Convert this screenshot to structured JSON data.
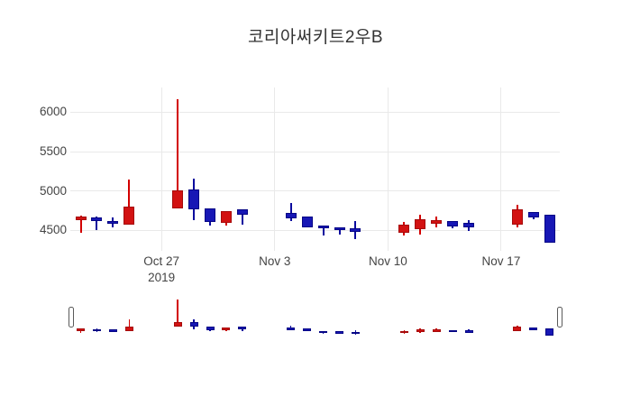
{
  "chart_data": {
    "type": "candlestick",
    "title": "코리아써키트2우B",
    "legend_position": "none",
    "grid": true,
    "colors": {
      "increasing_fill": "#d21212",
      "increasing_border": "#a50b0b",
      "increasing_wick": "#d30000",
      "decreasing_fill": "#1717b5",
      "decreasing_border": "#050585",
      "decreasing_wick": "#0b0b9e",
      "gridline": "#e9e9e9",
      "tick_text": "#444444",
      "title_text": "#333333"
    },
    "yaxis": {
      "range": [
        4236,
        6316
      ],
      "ticks": [
        4500,
        5000,
        5500,
        6000
      ]
    },
    "xaxis": {
      "ticks": [
        {
          "label": "Oct 27",
          "sublabel": "2019",
          "date": "2019-10-27"
        },
        {
          "label": "Nov 3",
          "sublabel": "",
          "date": "2019-11-03"
        },
        {
          "label": "Nov 10",
          "sublabel": "",
          "date": "2019-11-10"
        },
        {
          "label": "Nov 17",
          "sublabel": "",
          "date": "2019-11-17"
        }
      ]
    },
    "rangeslider": {
      "enabled": true,
      "range": [
        4230,
        6330
      ]
    },
    "candles": [
      {
        "date": "2019-10-22",
        "open": 4630,
        "high": 4680,
        "low": 4470,
        "close": 4670
      },
      {
        "date": "2019-10-23",
        "open": 4660,
        "high": 4670,
        "low": 4500,
        "close": 4620
      },
      {
        "date": "2019-10-24",
        "open": 4620,
        "high": 4660,
        "low": 4530,
        "close": 4590
      },
      {
        "date": "2019-10-25",
        "open": 4570,
        "high": 5140,
        "low": 4570,
        "close": 4800
      },
      {
        "date": "2019-10-28",
        "open": 4780,
        "high": 6170,
        "low": 4780,
        "close": 5010
      },
      {
        "date": "2019-10-29",
        "open": 5020,
        "high": 5160,
        "low": 4630,
        "close": 4760
      },
      {
        "date": "2019-10-30",
        "open": 4780,
        "high": 4780,
        "low": 4555,
        "close": 4600
      },
      {
        "date": "2019-10-31",
        "open": 4590,
        "high": 4740,
        "low": 4560,
        "close": 4740
      },
      {
        "date": "2019-11-01",
        "open": 4760,
        "high": 4760,
        "low": 4570,
        "close": 4690
      },
      {
        "date": "2019-11-04",
        "open": 4720,
        "high": 4840,
        "low": 4610,
        "close": 4650
      },
      {
        "date": "2019-11-05",
        "open": 4670,
        "high": 4670,
        "low": 4540,
        "close": 4540
      },
      {
        "date": "2019-11-06",
        "open": 4560,
        "high": 4560,
        "low": 4430,
        "close": 4520
      },
      {
        "date": "2019-11-07",
        "open": 4540,
        "high": 4540,
        "low": 4440,
        "close": 4500
      },
      {
        "date": "2019-11-08",
        "open": 4520,
        "high": 4610,
        "low": 4380,
        "close": 4480
      },
      {
        "date": "2019-11-11",
        "open": 4470,
        "high": 4600,
        "low": 4430,
        "close": 4570
      },
      {
        "date": "2019-11-12",
        "open": 4510,
        "high": 4700,
        "low": 4440,
        "close": 4640
      },
      {
        "date": "2019-11-13",
        "open": 4580,
        "high": 4670,
        "low": 4540,
        "close": 4630
      },
      {
        "date": "2019-11-14",
        "open": 4610,
        "high": 4610,
        "low": 4520,
        "close": 4550
      },
      {
        "date": "2019-11-15",
        "open": 4590,
        "high": 4630,
        "low": 4490,
        "close": 4540
      },
      {
        "date": "2019-11-18",
        "open": 4570,
        "high": 4820,
        "low": 4530,
        "close": 4760
      },
      {
        "date": "2019-11-19",
        "open": 4730,
        "high": 4730,
        "low": 4640,
        "close": 4665
      },
      {
        "date": "2019-11-20",
        "open": 4700,
        "high": 4700,
        "low": 4340,
        "close": 4340
      }
    ]
  }
}
